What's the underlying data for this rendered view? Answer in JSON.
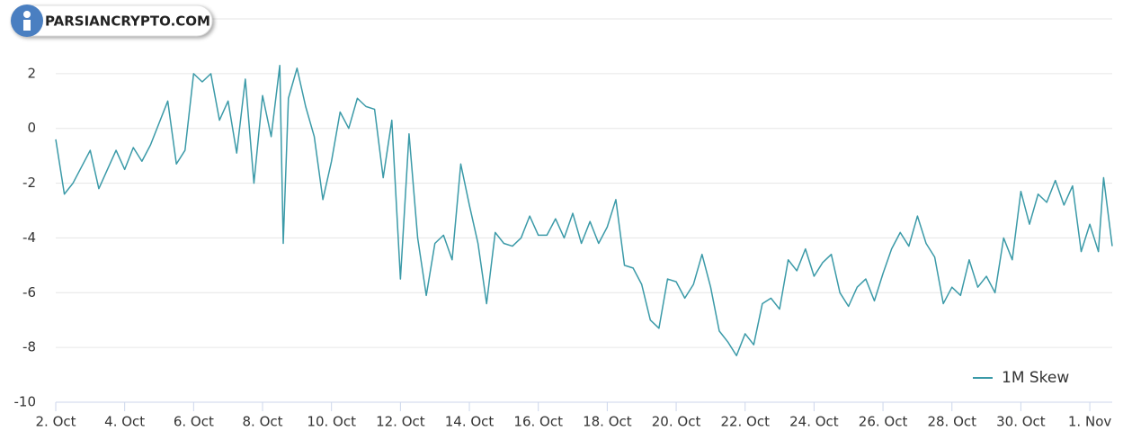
{
  "watermark": "PARSIANCRYPTO.COM",
  "chart_data": {
    "type": "line",
    "x": [
      2,
      2.25,
      2.5,
      2.75,
      3,
      3.25,
      3.5,
      3.75,
      4,
      4.25,
      4.5,
      4.75,
      5,
      5.25,
      5.5,
      5.75,
      6,
      6.25,
      6.5,
      6.75,
      7,
      7.25,
      7.5,
      7.75,
      8,
      8.25,
      8.5,
      8.6,
      8.75,
      9,
      9.25,
      9.5,
      9.75,
      10,
      10.25,
      10.5,
      10.75,
      11,
      11.25,
      11.5,
      11.75,
      12,
      12.25,
      12.5,
      12.75,
      13,
      13.25,
      13.5,
      13.75,
      14,
      14.25,
      14.5,
      14.75,
      15,
      15.25,
      15.5,
      15.75,
      16,
      16.25,
      16.5,
      16.75,
      17,
      17.25,
      17.5,
      17.75,
      18,
      18.25,
      18.5,
      18.75,
      19,
      19.25,
      19.5,
      19.75,
      20,
      20.25,
      20.5,
      20.75,
      21,
      21.25,
      21.5,
      21.75,
      22,
      22.25,
      22.5,
      22.75,
      23,
      23.25,
      23.5,
      23.75,
      24,
      24.25,
      24.5,
      24.75,
      25,
      25.25,
      25.5,
      25.75,
      26,
      26.25,
      26.5,
      26.75,
      27,
      27.25,
      27.5,
      27.75,
      28,
      28.25,
      28.5,
      28.75,
      29,
      29.25,
      29.5,
      29.75,
      30,
      30.25,
      30.5,
      30.75,
      31,
      31.25,
      31.5,
      31.75,
      32,
      32.25,
      32.4,
      32.65
    ],
    "series": [
      {
        "name": "1M Skew",
        "color": "#3b9aa8",
        "values": [
          -0.4,
          -2.4,
          -2.0,
          -1.4,
          -0.8,
          -2.2,
          -1.5,
          -0.8,
          -1.5,
          -0.7,
          -1.2,
          -0.6,
          0.2,
          1.0,
          -1.3,
          -0.8,
          2.0,
          1.7,
          2.0,
          0.3,
          1.0,
          -0.9,
          1.8,
          -2.0,
          1.2,
          -0.3,
          2.3,
          -4.2,
          1.1,
          2.2,
          0.8,
          -0.3,
          -2.6,
          -1.2,
          0.6,
          0.0,
          1.1,
          0.8,
          0.7,
          -1.8,
          0.3,
          -5.5,
          -0.2,
          -4.0,
          -6.1,
          -4.2,
          -3.9,
          -4.8,
          -1.3,
          -2.8,
          -4.2,
          -6.4,
          -3.8,
          -4.2,
          -4.3,
          -4.0,
          -3.2,
          -3.9,
          -3.9,
          -3.3,
          -4.0,
          -3.1,
          -4.2,
          -3.4,
          -4.2,
          -3.6,
          -2.6,
          -5.0,
          -5.1,
          -5.7,
          -7.0,
          -7.3,
          -5.5,
          -5.6,
          -6.2,
          -5.7,
          -4.6,
          -5.8,
          -7.4,
          -7.8,
          -8.3,
          -7.5,
          -7.9,
          -6.4,
          -6.2,
          -6.6,
          -4.8,
          -5.2,
          -4.4,
          -5.4,
          -4.9,
          -4.6,
          -6.0,
          -6.5,
          -5.8,
          -5.5,
          -6.3,
          -5.3,
          -4.4,
          -3.8,
          -4.3,
          -3.2,
          -4.2,
          -4.7,
          -6.4,
          -5.8,
          -6.1,
          -4.8,
          -5.8,
          -5.4,
          -6.0,
          -4.0,
          -4.8,
          -2.3,
          -3.5,
          -2.4,
          -2.7,
          -1.9,
          -2.8,
          -2.1,
          -4.5,
          -3.5,
          -4.5,
          -1.8,
          -4.3
        ]
      }
    ],
    "xlim": [
      2,
      32.65
    ],
    "xticks": [
      {
        "value": 2,
        "label": "2. Oct"
      },
      {
        "value": 4,
        "label": "4. Oct"
      },
      {
        "value": 6,
        "label": "6. Oct"
      },
      {
        "value": 8,
        "label": "8. Oct"
      },
      {
        "value": 10,
        "label": "10. Oct"
      },
      {
        "value": 12,
        "label": "12. Oct"
      },
      {
        "value": 14,
        "label": "14. Oct"
      },
      {
        "value": 16,
        "label": "16. Oct"
      },
      {
        "value": 18,
        "label": "18. Oct"
      },
      {
        "value": 20,
        "label": "20. Oct"
      },
      {
        "value": 22,
        "label": "22. Oct"
      },
      {
        "value": 24,
        "label": "24. Oct"
      },
      {
        "value": 26,
        "label": "26. Oct"
      },
      {
        "value": 28,
        "label": "28. Oct"
      },
      {
        "value": 30,
        "label": "30. Oct"
      },
      {
        "value": 32,
        "label": "1. Nov"
      }
    ],
    "ylim": [
      -10,
      4
    ],
    "yticks": [
      2,
      0,
      -2,
      -4,
      -6,
      -8,
      -10
    ],
    "grid": true,
    "legend": "bottom-right"
  }
}
